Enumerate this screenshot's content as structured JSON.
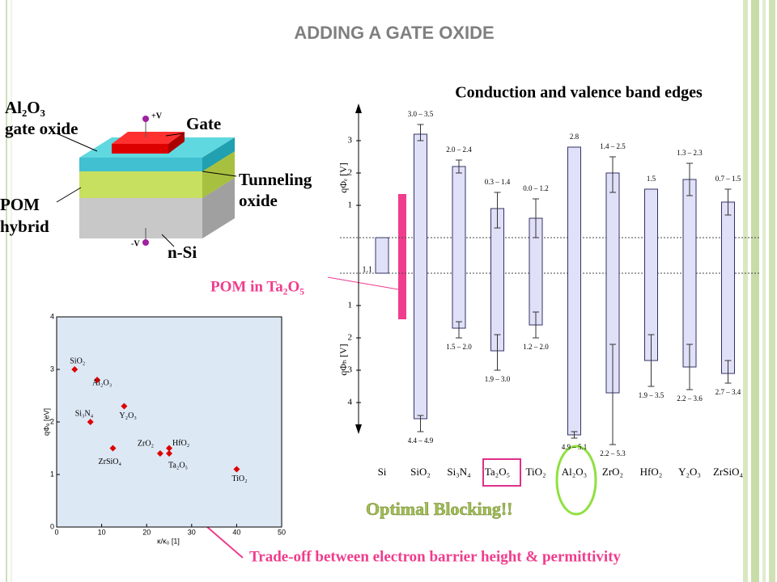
{
  "slide": {
    "title": "ADDING A GATE OXIDE",
    "device": {
      "oxide_label_1": "Al₂O₃",
      "oxide_label_2": "gate oxide",
      "gate": "Gate",
      "plus_v": "+V",
      "minus_v": "-V",
      "tunneling_1": "Tunneling",
      "tunneling_2": "oxide",
      "pom_1": "POM",
      "pom_2": "hybrid",
      "substrate": "n-Si"
    },
    "pom_callout": "POM in Ta₂O₅",
    "blocking_callout": "Optimal Blocking!!",
    "tradeoff_callout": "Trade-off between electron barrier height & permittivity"
  },
  "chart_data": [
    {
      "type": "band_edges",
      "title": "Conduction and valence band edges",
      "y_label_top": "qΦₑ [V]",
      "y_label_bottom": "qΦₕ [V]",
      "categories": [
        "Si",
        "SiO₂",
        "Si₃N₄",
        "Ta₂O₅",
        "TiO₂",
        "Al₂O₃",
        "ZrO₂",
        "HfO₂",
        "Y₂O₃",
        "ZrSiO₄"
      ],
      "gap": 1.1,
      "cb_offsets": [
        null,
        3.2,
        2.2,
        0.9,
        0.6,
        2.8,
        2.0,
        1.5,
        1.8,
        1.1
      ],
      "cb_low": [
        null,
        3.0,
        2.0,
        0.3,
        0.0,
        null,
        1.4,
        null,
        1.3,
        0.7
      ],
      "cb_high": [
        null,
        3.5,
        2.4,
        1.4,
        1.2,
        null,
        2.5,
        null,
        2.3,
        1.5
      ],
      "cb_labels": [
        null,
        "3.0 – 3.5",
        "2.0 – 2.4",
        "0.3 – 1.4",
        "0.0 – 1.2",
        "2.8",
        "1.4 – 2.5",
        "1.5",
        "1.3 – 2.3",
        "0.7 – 1.5"
      ],
      "vb_offsets": [
        null,
        4.5,
        1.7,
        2.4,
        1.6,
        5.0,
        3.7,
        2.7,
        2.9,
        3.1
      ],
      "vb_low": [
        null,
        4.4,
        1.5,
        1.9,
        1.2,
        4.9,
        2.2,
        1.9,
        2.2,
        2.7
      ],
      "vb_high": [
        null,
        4.9,
        2.0,
        3.0,
        2.0,
        5.1,
        5.3,
        3.5,
        3.6,
        3.4
      ],
      "vb_labels": [
        null,
        "4.4 – 4.9",
        "1.5 – 2.0",
        "1.9 – 3.0",
        "1.2 – 2.0",
        "4.9 – 5.1",
        "2.2 – 5.3",
        "1.9 – 3.5",
        "2.2 – 3.6",
        "2.7 – 3.4"
      ],
      "color": "#e0e0f8",
      "cb_ticks": [
        1,
        2,
        3
      ],
      "vb_ticks": [
        1,
        2,
        3,
        4
      ]
    },
    {
      "type": "scatter",
      "x_label": "κ/κ₀ [1]",
      "y_label": "qΦₑ [eV]",
      "labels": [
        "SiO₂",
        "Al₂O₃",
        "Si₃N₄",
        "Y₂O₃",
        "ZrSiO₄",
        "ZrO₂",
        "HfO₂",
        "Ta₂O₅",
        "TiO₂"
      ],
      "x": [
        4,
        9,
        7.5,
        15,
        12.5,
        23,
        25,
        25,
        40
      ],
      "values": [
        3.0,
        2.8,
        2.0,
        2.3,
        1.5,
        1.4,
        1.5,
        1.4,
        1.1
      ],
      "color": "#dd0000",
      "xlim": [
        0,
        50
      ],
      "ylim": [
        0,
        4
      ],
      "xticks": [
        0,
        10,
        20,
        30,
        40,
        50
      ],
      "yticks": [
        0,
        1,
        2,
        3,
        4
      ]
    }
  ]
}
